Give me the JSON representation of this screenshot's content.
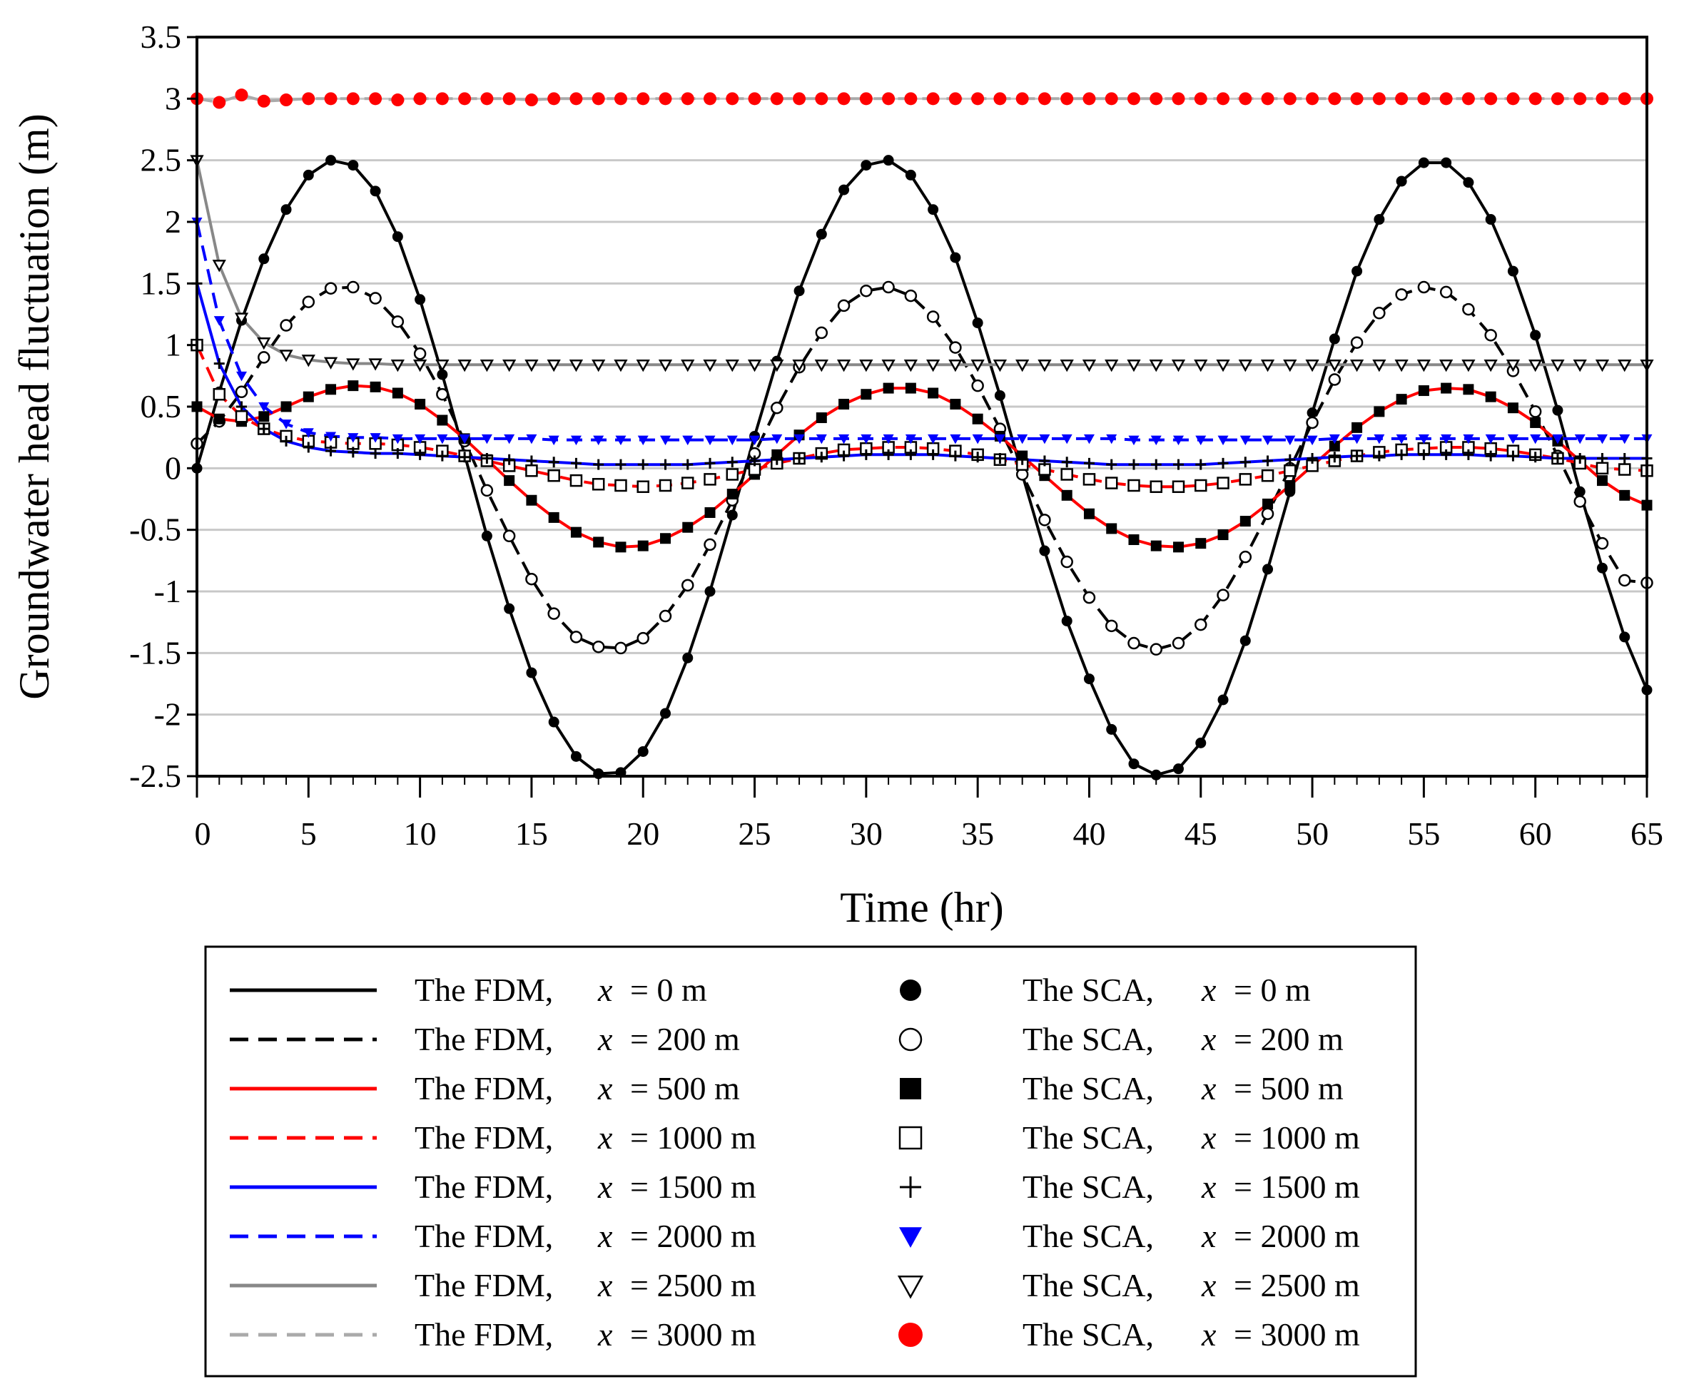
{
  "chart_data": {
    "type": "line",
    "xlabel": "Time (hr)",
    "ylabel": "Groundwater head fluctuation (m)",
    "xlim": [
      0,
      65
    ],
    "ylim": [
      -2.5,
      3.5
    ],
    "xticks": [
      "0",
      "5",
      "10",
      "15",
      "20",
      "25",
      "30",
      "35",
      "40",
      "45",
      "50",
      "55",
      "60",
      "65"
    ],
    "yticks": [
      "3.5",
      "3",
      "2.5",
      "2",
      "1.5",
      "1",
      "0.5",
      "0",
      "-0.5",
      "-1",
      "-1.5",
      "-2",
      "-2.5"
    ],
    "grid": true,
    "legend_position": "bottom",
    "t": [
      0,
      1,
      2,
      3,
      4,
      5,
      6,
      7,
      8,
      9,
      10,
      11,
      12,
      13,
      14,
      15,
      16,
      17,
      18,
      19,
      20,
      21,
      22,
      23,
      24,
      25,
      26,
      27,
      28,
      29,
      30,
      31,
      32,
      33,
      34,
      35,
      36,
      37,
      38,
      39,
      40,
      41,
      42,
      43,
      44,
      45,
      46,
      47,
      48,
      49,
      50,
      51,
      52,
      53,
      54,
      55,
      56,
      57,
      58,
      59,
      60,
      61,
      62,
      63,
      64,
      65
    ],
    "series": [
      {
        "name": "x = 0 m",
        "distance": "0 m",
        "color": "#000000",
        "dash": "solid",
        "marker": "filled-circle",
        "marker_color": "#000000",
        "values": [
          0,
          0.62,
          1.2,
          1.7,
          2.1,
          2.38,
          2.5,
          2.46,
          2.25,
          1.88,
          1.37,
          0.76,
          0.11,
          -0.55,
          -1.14,
          -1.66,
          -2.06,
          -2.34,
          -2.48,
          -2.47,
          -2.3,
          -1.99,
          -1.54,
          -1.0,
          -0.38,
          0.26,
          0.87,
          1.44,
          1.9,
          2.26,
          2.46,
          2.5,
          2.38,
          2.1,
          1.71,
          1.18,
          0.59,
          -0.05,
          -0.67,
          -1.24,
          -1.71,
          -2.12,
          -2.4,
          -2.49,
          -2.44,
          -2.23,
          -1.88,
          -1.4,
          -0.82,
          -0.19,
          0.45,
          1.05,
          1.6,
          2.02,
          2.33,
          2.48,
          2.48,
          2.32,
          2.02,
          1.6,
          1.08,
          0.47,
          -0.19,
          -0.81,
          -1.37,
          -1.8
        ]
      },
      {
        "name": "x = 200 m",
        "distance": "200 m",
        "color": "#000000",
        "dash": "dashed",
        "marker": "open-circle",
        "marker_color": "#000000",
        "values": [
          0.2,
          0.38,
          0.62,
          0.9,
          1.16,
          1.35,
          1.46,
          1.47,
          1.38,
          1.19,
          0.93,
          0.6,
          0.22,
          -0.18,
          -0.55,
          -0.9,
          -1.18,
          -1.37,
          -1.45,
          -1.46,
          -1.38,
          -1.2,
          -0.95,
          -0.62,
          -0.26,
          0.12,
          0.49,
          0.82,
          1.1,
          1.32,
          1.44,
          1.47,
          1.4,
          1.23,
          0.98,
          0.67,
          0.32,
          -0.05,
          -0.42,
          -0.76,
          -1.05,
          -1.28,
          -1.42,
          -1.47,
          -1.42,
          -1.27,
          -1.03,
          -0.72,
          -0.37,
          0.0,
          0.37,
          0.72,
          1.02,
          1.26,
          1.41,
          1.47,
          1.43,
          1.29,
          1.08,
          0.79,
          0.46,
          0.1,
          -0.27,
          -0.61,
          -0.91,
          -0.93
        ]
      },
      {
        "name": "x = 500 m",
        "distance": "500 m",
        "color": "#ff0000",
        "dash": "solid",
        "marker": "filled-square",
        "marker_color": "#000000",
        "values": [
          0.5,
          0.4,
          0.38,
          0.42,
          0.5,
          0.58,
          0.64,
          0.67,
          0.66,
          0.61,
          0.52,
          0.39,
          0.24,
          0.07,
          -0.1,
          -0.26,
          -0.4,
          -0.52,
          -0.6,
          -0.64,
          -0.63,
          -0.57,
          -0.48,
          -0.36,
          -0.21,
          -0.05,
          0.11,
          0.27,
          0.41,
          0.52,
          0.6,
          0.65,
          0.65,
          0.61,
          0.52,
          0.4,
          0.26,
          0.1,
          -0.06,
          -0.22,
          -0.37,
          -0.49,
          -0.58,
          -0.63,
          -0.64,
          -0.61,
          -0.54,
          -0.43,
          -0.29,
          -0.14,
          0.02,
          0.18,
          0.33,
          0.46,
          0.56,
          0.63,
          0.65,
          0.64,
          0.58,
          0.49,
          0.37,
          0.22,
          0.06,
          -0.1,
          -0.22,
          -0.3
        ]
      },
      {
        "name": "x = 1000 m",
        "distance": "1000 m",
        "color": "#ff0000",
        "dash": "dashed",
        "marker": "open-square",
        "marker_color": "#000000",
        "values": [
          1.0,
          0.6,
          0.42,
          0.32,
          0.26,
          0.22,
          0.21,
          0.2,
          0.2,
          0.19,
          0.17,
          0.14,
          0.1,
          0.06,
          0.02,
          -0.02,
          -0.06,
          -0.1,
          -0.13,
          -0.14,
          -0.15,
          -0.14,
          -0.12,
          -0.09,
          -0.05,
          -0.01,
          0.04,
          0.08,
          0.12,
          0.15,
          0.16,
          0.17,
          0.17,
          0.16,
          0.14,
          0.11,
          0.07,
          0.03,
          -0.01,
          -0.05,
          -0.09,
          -0.12,
          -0.14,
          -0.15,
          -0.15,
          -0.14,
          -0.12,
          -0.09,
          -0.06,
          -0.02,
          0.02,
          0.06,
          0.1,
          0.13,
          0.15,
          0.16,
          0.17,
          0.17,
          0.16,
          0.14,
          0.11,
          0.08,
          0.04,
          0.0,
          -0.01,
          -0.02
        ]
      },
      {
        "name": "x = 1500 m",
        "distance": "1500 m",
        "color": "#0000ff",
        "dash": "solid",
        "marker": "plus",
        "marker_color": "#000000",
        "values": [
          1.5,
          0.85,
          0.5,
          0.32,
          0.22,
          0.17,
          0.14,
          0.13,
          0.12,
          0.12,
          0.11,
          0.1,
          0.09,
          0.08,
          0.07,
          0.06,
          0.05,
          0.04,
          0.03,
          0.03,
          0.03,
          0.03,
          0.03,
          0.04,
          0.05,
          0.06,
          0.07,
          0.08,
          0.09,
          0.1,
          0.11,
          0.11,
          0.11,
          0.11,
          0.1,
          0.09,
          0.08,
          0.07,
          0.06,
          0.05,
          0.04,
          0.03,
          0.03,
          0.03,
          0.03,
          0.03,
          0.04,
          0.05,
          0.06,
          0.07,
          0.08,
          0.09,
          0.1,
          0.1,
          0.11,
          0.11,
          0.11,
          0.11,
          0.1,
          0.1,
          0.09,
          0.08,
          0.08,
          0.08,
          0.08,
          0.08
        ]
      },
      {
        "name": "x = 2000 m",
        "distance": "2000 m",
        "color": "#0000ff",
        "dash": "dashed",
        "marker": "filled-triangle-down",
        "marker_color": "#0000ff",
        "values": [
          2.0,
          1.2,
          0.75,
          0.5,
          0.36,
          0.29,
          0.26,
          0.25,
          0.25,
          0.24,
          0.24,
          0.24,
          0.24,
          0.24,
          0.24,
          0.24,
          0.23,
          0.23,
          0.23,
          0.23,
          0.23,
          0.23,
          0.23,
          0.23,
          0.23,
          0.23,
          0.24,
          0.24,
          0.24,
          0.24,
          0.24,
          0.24,
          0.24,
          0.24,
          0.24,
          0.24,
          0.24,
          0.24,
          0.24,
          0.24,
          0.24,
          0.24,
          0.23,
          0.23,
          0.23,
          0.23,
          0.23,
          0.23,
          0.23,
          0.23,
          0.23,
          0.24,
          0.24,
          0.24,
          0.24,
          0.24,
          0.24,
          0.24,
          0.24,
          0.24,
          0.24,
          0.24,
          0.24,
          0.24,
          0.24,
          0.24
        ]
      },
      {
        "name": "x = 2500 m",
        "distance": "2500 m",
        "color": "#888888",
        "dash": "solid",
        "marker": "open-triangle-down",
        "marker_color": "#000000",
        "values": [
          2.5,
          1.65,
          1.22,
          1.02,
          0.92,
          0.88,
          0.86,
          0.85,
          0.85,
          0.84,
          0.84,
          0.84,
          0.84,
          0.84,
          0.84,
          0.84,
          0.84,
          0.84,
          0.84,
          0.84,
          0.84,
          0.84,
          0.84,
          0.84,
          0.84,
          0.84,
          0.84,
          0.84,
          0.84,
          0.84,
          0.84,
          0.84,
          0.84,
          0.84,
          0.84,
          0.84,
          0.84,
          0.84,
          0.84,
          0.84,
          0.84,
          0.84,
          0.84,
          0.84,
          0.84,
          0.84,
          0.84,
          0.84,
          0.84,
          0.84,
          0.84,
          0.84,
          0.84,
          0.84,
          0.84,
          0.84,
          0.84,
          0.84,
          0.84,
          0.84,
          0.84,
          0.84,
          0.84,
          0.84,
          0.84,
          0.84
        ]
      },
      {
        "name": "x = 3000 m",
        "distance": "3000 m",
        "color": "#aaaaaa",
        "dash": "dashed",
        "marker": "filled-circle",
        "marker_color": "#ff0000",
        "values": [
          3.0,
          2.97,
          3.03,
          2.98,
          2.99,
          3.0,
          3.0,
          3.0,
          3.0,
          2.99,
          3.0,
          3.0,
          3.0,
          3.0,
          3.0,
          2.99,
          3.0,
          3.0,
          3.0,
          3.0,
          3.0,
          3.0,
          3.0,
          3.0,
          3.0,
          3.0,
          3.0,
          3.0,
          3.0,
          3.0,
          3.0,
          3.0,
          3.0,
          3.0,
          3.0,
          3.0,
          3.0,
          3.0,
          3.0,
          3.0,
          3.0,
          3.0,
          3.0,
          3.0,
          3.0,
          3.0,
          3.0,
          3.0,
          3.0,
          3.0,
          3.0,
          3.0,
          3.0,
          3.0,
          3.0,
          3.0,
          3.0,
          3.0,
          3.0,
          3.0,
          3.0,
          3.0,
          3.0,
          3.0,
          3.0,
          3.0
        ]
      }
    ],
    "legend": {
      "fdm_prefix": "The FDM,",
      "sca_prefix": "The SCA,",
      "var": "x",
      "eq": "="
    }
  }
}
